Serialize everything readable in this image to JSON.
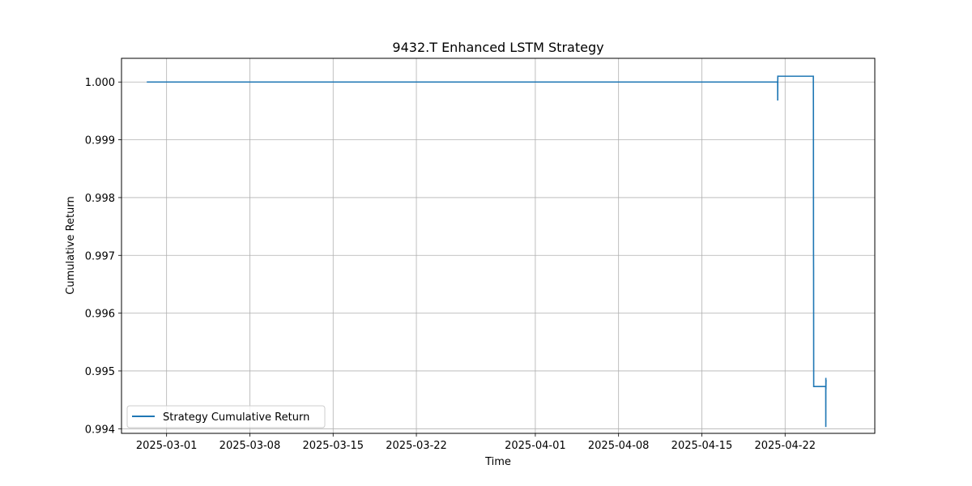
{
  "chart_data": {
    "type": "line",
    "title": "9432.T Enhanced LSTM Strategy",
    "xlabel": "Time",
    "ylabel": "Cumulative Return",
    "xlim": [
      "2025-02-25T05:00",
      "2025-04-29T13:00"
    ],
    "ylim": [
      0.99392,
      1.00041
    ],
    "grid": true,
    "legend_position": "lower-left",
    "x_ticks": [
      "2025-03-01",
      "2025-03-08",
      "2025-03-15",
      "2025-03-22",
      "2025-04-01",
      "2025-04-08",
      "2025-04-15",
      "2025-04-22"
    ],
    "y_ticks": [
      "0.994",
      "0.995",
      "0.996",
      "0.997",
      "0.998",
      "0.999",
      "1.000"
    ],
    "series": [
      {
        "name": "Strategy Cumulative Return",
        "color": "#1f77b4",
        "points": [
          {
            "x": "2025-02-27T08:00",
            "y": 1.0
          },
          {
            "x": "2025-04-21T09:00",
            "y": 1.0
          },
          {
            "x": "2025-04-21T09:06",
            "y": 0.99968
          },
          {
            "x": "2025-04-21T09:12",
            "y": 1.0
          },
          {
            "x": "2025-04-21T09:20",
            "y": 1.00011
          },
          {
            "x": "2025-04-21T09:30",
            "y": 1.0001
          },
          {
            "x": "2025-04-24T09:00",
            "y": 1.0001
          },
          {
            "x": "2025-04-24T09:10",
            "y": 0.99958
          },
          {
            "x": "2025-04-24T09:20",
            "y": 0.99708
          },
          {
            "x": "2025-04-24T09:30",
            "y": 0.99675
          },
          {
            "x": "2025-04-24T09:45",
            "y": 0.99473
          },
          {
            "x": "2025-04-25T10:00",
            "y": 0.99473
          },
          {
            "x": "2025-04-25T10:10",
            "y": 0.99403
          },
          {
            "x": "2025-04-25T10:15",
            "y": 0.99488
          },
          {
            "x": "2025-04-25T10:25",
            "y": 0.99468
          },
          {
            "x": "2025-04-25T10:35",
            "y": 0.99483
          },
          {
            "x": "2025-04-25T12:00",
            "y": 0.99483
          }
        ]
      }
    ]
  }
}
